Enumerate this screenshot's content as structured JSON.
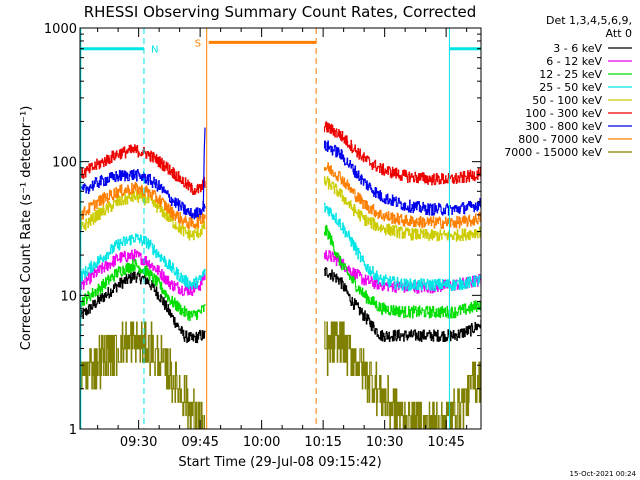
{
  "chart_data": {
    "type": "line",
    "title": "RHESSI Observing Summary Count Rates, Corrected",
    "xlabel": "Start Time (29-Jul-08 09:15:42)",
    "ylabel": "Corrected Count Rate (s⁻¹ detector⁻¹)",
    "yscale": "log",
    "ylim": [
      1,
      1000
    ],
    "xlim_minutes_after_0915": [
      0.7,
      98.5
    ],
    "x_ticks": [
      {
        "label": "09:30",
        "t": 15
      },
      {
        "label": "09:45",
        "t": 30
      },
      {
        "label": "10:00",
        "t": 45
      },
      {
        "label": "10:15",
        "t": 60
      },
      {
        "label": "10:30",
        "t": 75
      },
      {
        "label": "10:45",
        "t": 90
      }
    ],
    "y_ticks": [
      {
        "label": "1",
        "v": 1
      },
      {
        "label": "10",
        "v": 10
      },
      {
        "label": "100",
        "v": 100
      },
      {
        "label": "1000",
        "v": 1000
      }
    ],
    "grid": false,
    "legend": {
      "position": "right",
      "header": [
        "Det 1,3,4,5,6,9,",
        "Att 0"
      ],
      "entries": [
        {
          "label": "3 - 6 keV",
          "color": "#000000"
        },
        {
          "label": "6 - 12 keV",
          "color": "#ee00ee"
        },
        {
          "label": "12 - 25 keV",
          "color": "#00dd00"
        },
        {
          "label": "25 - 50 keV",
          "color": "#00e5e5"
        },
        {
          "label": "50 - 100 keV",
          "color": "#cccc00"
        },
        {
          "label": "100 - 300 keV",
          "color": "#ee0000"
        },
        {
          "label": "300 - 800 keV",
          "color": "#0000ee"
        },
        {
          "label": "800 - 7000 keV",
          "color": "#ff7f00"
        },
        {
          "label": "7000 - 15000 keV",
          "color": "#808000"
        }
      ]
    },
    "series_intervals": [
      {
        "t_start": 0.7,
        "t_end": 31.2
      },
      {
        "t_start": 60.2,
        "t_end": 98.5
      }
    ],
    "series": [
      {
        "name": "3 - 6 keV",
        "color": "#000000",
        "points": [
          [
            1,
            7
          ],
          [
            5,
            9
          ],
          [
            10,
            12
          ],
          [
            14,
            14
          ],
          [
            17,
            13
          ],
          [
            20,
            10
          ],
          [
            23,
            7
          ],
          [
            26,
            5
          ],
          [
            28,
            4.7
          ],
          [
            30,
            5
          ],
          [
            31,
            5
          ],
          [
            61,
            15
          ],
          [
            64,
            13
          ],
          [
            67,
            9
          ],
          [
            70,
            7
          ],
          [
            74,
            5
          ],
          [
            80,
            5
          ],
          [
            86,
            5
          ],
          [
            92,
            5
          ],
          [
            96,
            5.5
          ],
          [
            98,
            6
          ]
        ]
      },
      {
        "name": "6 - 12 keV",
        "color": "#ee00ee",
        "points": [
          [
            1,
            12
          ],
          [
            5,
            15
          ],
          [
            10,
            19
          ],
          [
            14,
            20
          ],
          [
            17,
            18
          ],
          [
            20,
            15
          ],
          [
            23,
            12
          ],
          [
            26,
            11
          ],
          [
            28,
            11
          ],
          [
            30,
            12
          ],
          [
            31,
            14
          ],
          [
            61,
            20
          ],
          [
            64,
            18
          ],
          [
            67,
            15
          ],
          [
            70,
            13
          ],
          [
            74,
            12
          ],
          [
            80,
            11.5
          ],
          [
            86,
            11.5
          ],
          [
            92,
            12
          ],
          [
            96,
            12.5
          ],
          [
            98,
            13
          ]
        ]
      },
      {
        "name": "12 - 25 keV",
        "color": "#00dd00",
        "points": [
          [
            1,
            9
          ],
          [
            5,
            11
          ],
          [
            10,
            15
          ],
          [
            14,
            17
          ],
          [
            17,
            15
          ],
          [
            20,
            12
          ],
          [
            23,
            9
          ],
          [
            26,
            7.5
          ],
          [
            28,
            7
          ],
          [
            30,
            7.5
          ],
          [
            31,
            8
          ],
          [
            61,
            30
          ],
          [
            64,
            18
          ],
          [
            67,
            13
          ],
          [
            70,
            10
          ],
          [
            74,
            8
          ],
          [
            80,
            7.5
          ],
          [
            86,
            7.5
          ],
          [
            92,
            7.5
          ],
          [
            96,
            8
          ],
          [
            98,
            8.5
          ]
        ]
      },
      {
        "name": "25 - 50 keV",
        "color": "#00e5e5",
        "points": [
          [
            1,
            14
          ],
          [
            5,
            18
          ],
          [
            10,
            24
          ],
          [
            14,
            27
          ],
          [
            17,
            25
          ],
          [
            20,
            20
          ],
          [
            23,
            16
          ],
          [
            26,
            13
          ],
          [
            28,
            12
          ],
          [
            30,
            13
          ],
          [
            31,
            15
          ],
          [
            61,
            45
          ],
          [
            64,
            35
          ],
          [
            67,
            25
          ],
          [
            70,
            17
          ],
          [
            74,
            13
          ],
          [
            80,
            12
          ],
          [
            86,
            12
          ],
          [
            92,
            12
          ],
          [
            96,
            12.5
          ],
          [
            98,
            13
          ]
        ]
      },
      {
        "name": "50 - 100 keV",
        "color": "#cccc00",
        "points": [
          [
            1,
            32
          ],
          [
            5,
            40
          ],
          [
            10,
            50
          ],
          [
            14,
            55
          ],
          [
            17,
            52
          ],
          [
            20,
            45
          ],
          [
            23,
            36
          ],
          [
            26,
            30
          ],
          [
            28,
            28
          ],
          [
            30,
            30
          ],
          [
            31,
            33
          ],
          [
            61,
            70
          ],
          [
            64,
            58
          ],
          [
            67,
            45
          ],
          [
            70,
            37
          ],
          [
            74,
            32
          ],
          [
            80,
            29
          ],
          [
            86,
            28
          ],
          [
            92,
            28
          ],
          [
            96,
            29
          ],
          [
            98,
            30
          ]
        ]
      },
      {
        "name": "100 - 300 keV",
        "color": "#ee0000",
        "points": [
          [
            1,
            80
          ],
          [
            5,
            95
          ],
          [
            10,
            115
          ],
          [
            14,
            122
          ],
          [
            17,
            115
          ],
          [
            20,
            100
          ],
          [
            23,
            85
          ],
          [
            26,
            70
          ],
          [
            28,
            62
          ],
          [
            30,
            62
          ],
          [
            31,
            70
          ],
          [
            61,
            180
          ],
          [
            64,
            160
          ],
          [
            67,
            130
          ],
          [
            70,
            105
          ],
          [
            74,
            88
          ],
          [
            80,
            78
          ],
          [
            86,
            74
          ],
          [
            92,
            74
          ],
          [
            96,
            78
          ],
          [
            98,
            82
          ]
        ]
      },
      {
        "name": "300 - 800 keV",
        "color": "#0000ee",
        "points": [
          [
            1,
            60
          ],
          [
            5,
            70
          ],
          [
            10,
            78
          ],
          [
            14,
            80
          ],
          [
            17,
            75
          ],
          [
            20,
            65
          ],
          [
            23,
            52
          ],
          [
            26,
            44
          ],
          [
            28,
            40
          ],
          [
            30,
            42
          ],
          [
            31,
            48
          ],
          [
            61,
            130
          ],
          [
            64,
            115
          ],
          [
            67,
            90
          ],
          [
            70,
            70
          ],
          [
            74,
            55
          ],
          [
            80,
            47
          ],
          [
            86,
            44
          ],
          [
            92,
            44
          ],
          [
            96,
            46
          ],
          [
            98,
            48
          ]
        ]
      },
      {
        "name": "800 - 7000 keV",
        "color": "#ff7f00",
        "points": [
          [
            1,
            40
          ],
          [
            5,
            50
          ],
          [
            10,
            60
          ],
          [
            14,
            63
          ],
          [
            17,
            60
          ],
          [
            20,
            52
          ],
          [
            23,
            42
          ],
          [
            26,
            36
          ],
          [
            28,
            34
          ],
          [
            30,
            36
          ],
          [
            31,
            40
          ],
          [
            61,
            90
          ],
          [
            64,
            78
          ],
          [
            67,
            60
          ],
          [
            70,
            48
          ],
          [
            74,
            40
          ],
          [
            80,
            36
          ],
          [
            86,
            35
          ],
          [
            92,
            35
          ],
          [
            96,
            36
          ],
          [
            98,
            38
          ]
        ]
      },
      {
        "name": "7000 - 15000 keV",
        "color": "#808000",
        "points": [
          [
            1,
            2.5
          ],
          [
            4,
            3
          ],
          [
            7,
            3.5
          ],
          [
            10,
            4
          ],
          [
            14,
            4.5
          ],
          [
            18,
            4
          ],
          [
            21,
            3
          ],
          [
            24,
            2.2
          ],
          [
            26,
            1.7
          ],
          [
            28,
            1.3
          ],
          [
            30,
            1.1
          ],
          [
            31,
            1
          ],
          [
            61,
            4
          ],
          [
            64,
            4.5
          ],
          [
            67,
            3.5
          ],
          [
            70,
            2.8
          ],
          [
            73,
            2
          ],
          [
            76,
            1.5
          ],
          [
            80,
            1.2
          ],
          [
            86,
            1.1
          ],
          [
            92,
            1.3
          ],
          [
            96,
            2
          ],
          [
            98,
            2.5
          ]
        ]
      }
    ],
    "annotations": [
      {
        "text": "N",
        "kind": "night",
        "color": "#00e5e5",
        "bars": [
          [
            0.7,
            16.3
          ],
          [
            90.8,
            98.5
          ]
        ],
        "bar_level": 700,
        "lines": [
          16.3,
          90.8,
          98.5
        ]
      },
      {
        "text": "S",
        "kind": "saa",
        "color": "#ff7f00",
        "bars": [
          [
            32.1,
            58.3
          ]
        ],
        "bar_level": 780,
        "lines": [
          31.6,
          58.3
        ]
      }
    ],
    "footer_timestamp": "15-Oct-2021 00:24"
  }
}
